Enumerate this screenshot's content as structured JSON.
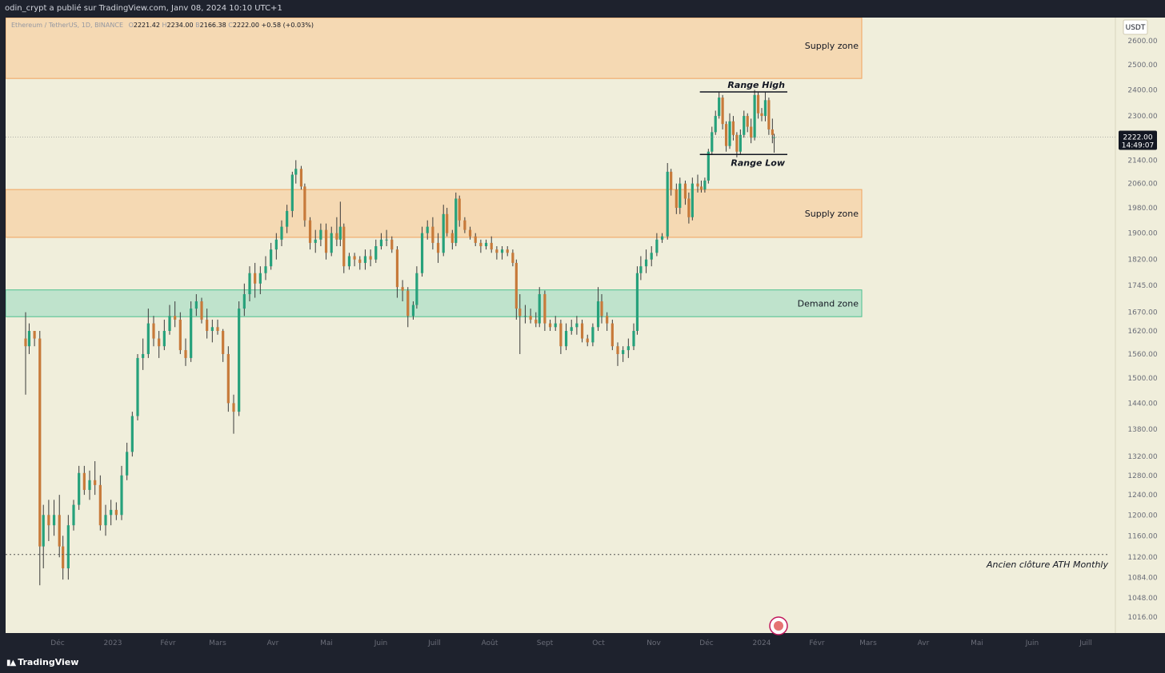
{
  "header": {
    "publisher_text": "odin_crypt a publié sur TradingView.com, Janv 08, 2024 10:10 UTC+1"
  },
  "footer": {
    "brand": "TradingView",
    "logo_icon": "tradingview-logo-icon"
  },
  "symbol_bar": {
    "symbol": "Ethereum / TetherUS, 1D, BINANCE",
    "open_label": "O",
    "open": "2221.42",
    "high_label": "H",
    "high": "2234.00",
    "low_label": "B",
    "low": "2166.38",
    "close_label": "C",
    "close": "2222.00",
    "change": "+0.58 (+0.03%)"
  },
  "chart_data": {
    "type": "candlestick",
    "title": "Ethereum / TetherUS, 1D, BINANCE",
    "currency_label": "USDT",
    "y_scale": "log",
    "ylim": [
      1000,
      2680
    ],
    "y_ticks": [
      "2600.00",
      "2500.00",
      "2400.00",
      "2300.00",
      "2140.00",
      "2060.00",
      "1980.00",
      "1900.00",
      "1820.00",
      "1745.00",
      "1670.00",
      "1620.00",
      "1560.00",
      "1500.00",
      "1440.00",
      "1380.00",
      "1320.00",
      "1280.00",
      "1240.00",
      "1200.00",
      "1160.00",
      "1120.00",
      "1084.00",
      "1048.00",
      "1016.00"
    ],
    "x_ticks": [
      "Déc",
      "2023",
      "Févr",
      "Mars",
      "Avr",
      "Mai",
      "Juin",
      "Juill",
      "Août",
      "Sept",
      "Oct",
      "Nov",
      "Déc",
      "2024",
      "Févr",
      "Mars",
      "Avr",
      "Mai",
      "Juin",
      "Juill"
    ],
    "last_price": {
      "value": "2222.00",
      "countdown": "14:49:07",
      "price": 2222
    },
    "colors": {
      "background": "#f0eedb",
      "up": "#26a17b",
      "down": "#c77a3a",
      "wick": "#3a3a3a",
      "supply_fill": "#f5d9b3",
      "supply_border": "#f0a35e",
      "demand_fill": "#bfe3cc",
      "demand_border": "#4cc08f"
    },
    "zones": [
      {
        "type": "supply",
        "label": "Supply zone",
        "low": 2445,
        "high": 2700
      },
      {
        "type": "supply",
        "label": "Supply zone",
        "low": 1887,
        "high": 2040
      },
      {
        "type": "demand",
        "label": "Demand zone",
        "low": 1658,
        "high": 1732
      }
    ],
    "levels": [
      {
        "label": "Range High",
        "price": 2392,
        "start": "2023-11-29",
        "end": "2024-01-10"
      },
      {
        "label": "Range Low",
        "price": 2160,
        "start": "2023-11-29",
        "end": "2024-01-10"
      },
      {
        "label": "Ancien clôture ATH Monthly",
        "price": 1125,
        "style": "dotted"
      }
    ],
    "candles": [
      [
        "2022-11-13",
        1600,
        1670,
        1460,
        1580
      ],
      [
        "2022-11-15",
        1580,
        1640,
        1560,
        1620
      ],
      [
        "2022-11-18",
        1620,
        1610,
        1580,
        1600
      ],
      [
        "2022-11-21",
        1600,
        1620,
        1070,
        1140
      ],
      [
        "2022-11-23",
        1140,
        1220,
        1100,
        1200
      ],
      [
        "2022-11-26",
        1200,
        1230,
        1150,
        1180
      ],
      [
        "2022-11-29",
        1180,
        1230,
        1160,
        1200
      ],
      [
        "2022-12-02",
        1200,
        1240,
        1120,
        1140
      ],
      [
        "2022-12-04",
        1140,
        1160,
        1080,
        1100
      ],
      [
        "2022-12-07",
        1100,
        1200,
        1080,
        1180
      ],
      [
        "2022-12-10",
        1180,
        1230,
        1170,
        1220
      ],
      [
        "2022-12-13",
        1220,
        1300,
        1210,
        1285
      ],
      [
        "2022-12-16",
        1285,
        1300,
        1240,
        1250
      ],
      [
        "2022-12-19",
        1250,
        1290,
        1230,
        1270
      ],
      [
        "2022-12-22",
        1270,
        1310,
        1240,
        1260
      ],
      [
        "2022-12-25",
        1260,
        1280,
        1170,
        1180
      ],
      [
        "2022-12-28",
        1180,
        1220,
        1160,
        1200
      ],
      [
        "2022-12-31",
        1200,
        1230,
        1180,
        1210
      ],
      [
        "2023-01-03",
        1210,
        1225,
        1190,
        1200
      ],
      [
        "2023-01-06",
        1200,
        1300,
        1190,
        1280
      ],
      [
        "2023-01-09",
        1280,
        1350,
        1270,
        1330
      ],
      [
        "2023-01-12",
        1330,
        1420,
        1320,
        1410
      ],
      [
        "2023-01-15",
        1410,
        1560,
        1400,
        1550
      ],
      [
        "2023-01-18",
        1550,
        1600,
        1520,
        1560
      ],
      [
        "2023-01-21",
        1560,
        1680,
        1550,
        1640
      ],
      [
        "2023-01-24",
        1640,
        1660,
        1580,
        1600
      ],
      [
        "2023-01-27",
        1600,
        1620,
        1550,
        1580
      ],
      [
        "2023-01-30",
        1580,
        1650,
        1570,
        1620
      ],
      [
        "2023-02-02",
        1620,
        1690,
        1610,
        1660
      ],
      [
        "2023-02-05",
        1660,
        1700,
        1630,
        1650
      ],
      [
        "2023-02-08",
        1650,
        1670,
        1560,
        1570
      ],
      [
        "2023-02-11",
        1570,
        1600,
        1530,
        1550
      ],
      [
        "2023-02-14",
        1550,
        1700,
        1540,
        1680
      ],
      [
        "2023-02-17",
        1680,
        1720,
        1660,
        1700
      ],
      [
        "2023-02-20",
        1700,
        1710,
        1640,
        1650
      ],
      [
        "2023-02-23",
        1650,
        1680,
        1600,
        1620
      ],
      [
        "2023-02-26",
        1620,
        1650,
        1590,
        1630
      ],
      [
        "2023-03-01",
        1630,
        1650,
        1610,
        1620
      ],
      [
        "2023-03-04",
        1620,
        1625,
        1540,
        1560
      ],
      [
        "2023-03-07",
        1560,
        1580,
        1420,
        1440
      ],
      [
        "2023-03-10",
        1440,
        1460,
        1370,
        1420
      ],
      [
        "2023-03-13",
        1420,
        1700,
        1410,
        1680
      ],
      [
        "2023-03-16",
        1680,
        1750,
        1660,
        1720
      ],
      [
        "2023-03-19",
        1720,
        1800,
        1700,
        1780
      ],
      [
        "2023-03-22",
        1780,
        1810,
        1710,
        1750
      ],
      [
        "2023-03-25",
        1750,
        1800,
        1720,
        1780
      ],
      [
        "2023-03-28",
        1780,
        1830,
        1760,
        1800
      ],
      [
        "2023-03-31",
        1800,
        1870,
        1790,
        1850
      ],
      [
        "2023-04-03",
        1850,
        1900,
        1820,
        1880
      ],
      [
        "2023-04-06",
        1880,
        1940,
        1860,
        1920
      ],
      [
        "2023-04-09",
        1920,
        1990,
        1900,
        1970
      ],
      [
        "2023-04-12",
        1970,
        2100,
        1950,
        2090
      ],
      [
        "2023-04-14",
        2090,
        2140,
        2060,
        2110
      ],
      [
        "2023-04-17",
        2110,
        2120,
        2040,
        2050
      ],
      [
        "2023-04-19",
        2050,
        2060,
        1920,
        1940
      ],
      [
        "2023-04-22",
        1940,
        1950,
        1850,
        1870
      ],
      [
        "2023-04-25",
        1870,
        1910,
        1840,
        1880
      ],
      [
        "2023-04-28",
        1880,
        1930,
        1860,
        1910
      ],
      [
        "2023-05-01",
        1910,
        1930,
        1820,
        1840
      ],
      [
        "2023-05-04",
        1840,
        1920,
        1830,
        1900
      ],
      [
        "2023-05-07",
        1900,
        1950,
        1860,
        1880
      ],
      [
        "2023-05-09",
        1880,
        2000,
        1860,
        1920
      ],
      [
        "2023-05-11",
        1920,
        1930,
        1780,
        1800
      ],
      [
        "2023-05-14",
        1800,
        1840,
        1790,
        1830
      ],
      [
        "2023-05-17",
        1830,
        1840,
        1800,
        1820
      ],
      [
        "2023-05-20",
        1820,
        1830,
        1790,
        1810
      ],
      [
        "2023-05-23",
        1810,
        1850,
        1790,
        1830
      ],
      [
        "2023-05-26",
        1830,
        1850,
        1800,
        1820
      ],
      [
        "2023-05-29",
        1820,
        1880,
        1810,
        1860
      ],
      [
        "2023-06-01",
        1860,
        1900,
        1850,
        1880
      ],
      [
        "2023-06-04",
        1880,
        1910,
        1860,
        1880
      ],
      [
        "2023-06-07",
        1880,
        1890,
        1840,
        1850
      ],
      [
        "2023-06-10",
        1850,
        1860,
        1710,
        1740
      ],
      [
        "2023-06-13",
        1740,
        1760,
        1700,
        1730
      ],
      [
        "2023-06-16",
        1730,
        1740,
        1630,
        1660
      ],
      [
        "2023-06-19",
        1660,
        1700,
        1650,
        1690
      ],
      [
        "2023-06-21",
        1690,
        1800,
        1680,
        1780
      ],
      [
        "2023-06-24",
        1780,
        1920,
        1770,
        1900
      ],
      [
        "2023-06-27",
        1900,
        1940,
        1880,
        1920
      ],
      [
        "2023-06-30",
        1920,
        1950,
        1850,
        1870
      ],
      [
        "2023-07-03",
        1870,
        1900,
        1810,
        1840
      ],
      [
        "2023-07-06",
        1840,
        1990,
        1830,
        1960
      ],
      [
        "2023-07-08",
        1960,
        1980,
        1890,
        1900
      ],
      [
        "2023-07-11",
        1900,
        1910,
        1850,
        1870
      ],
      [
        "2023-07-13",
        1870,
        2030,
        1860,
        2010
      ],
      [
        "2023-07-15",
        2010,
        2020,
        1920,
        1940
      ],
      [
        "2023-07-18",
        1940,
        1950,
        1900,
        1910
      ],
      [
        "2023-07-21",
        1910,
        1920,
        1880,
        1890
      ],
      [
        "2023-07-24",
        1890,
        1900,
        1860,
        1870
      ],
      [
        "2023-07-27",
        1870,
        1880,
        1840,
        1860
      ],
      [
        "2023-07-30",
        1860,
        1880,
        1850,
        1870
      ],
      [
        "2023-08-02",
        1870,
        1890,
        1840,
        1850
      ],
      [
        "2023-08-05",
        1850,
        1860,
        1820,
        1840
      ],
      [
        "2023-08-08",
        1840,
        1860,
        1820,
        1850
      ],
      [
        "2023-08-11",
        1850,
        1860,
        1830,
        1840
      ],
      [
        "2023-08-14",
        1840,
        1850,
        1800,
        1810
      ],
      [
        "2023-08-16",
        1810,
        1820,
        1650,
        1680
      ],
      [
        "2023-08-18",
        1680,
        1720,
        1560,
        1660
      ],
      [
        "2023-08-21",
        1660,
        1690,
        1640,
        1660
      ],
      [
        "2023-08-24",
        1660,
        1680,
        1640,
        1650
      ],
      [
        "2023-08-27",
        1650,
        1670,
        1630,
        1640
      ],
      [
        "2023-08-29",
        1640,
        1740,
        1630,
        1720
      ],
      [
        "2023-09-01",
        1720,
        1730,
        1620,
        1640
      ],
      [
        "2023-09-04",
        1640,
        1650,
        1620,
        1630
      ],
      [
        "2023-09-07",
        1630,
        1660,
        1620,
        1640
      ],
      [
        "2023-09-10",
        1640,
        1650,
        1560,
        1580
      ],
      [
        "2023-09-13",
        1580,
        1640,
        1570,
        1620
      ],
      [
        "2023-09-16",
        1620,
        1650,
        1610,
        1630
      ],
      [
        "2023-09-19",
        1630,
        1660,
        1610,
        1640
      ],
      [
        "2023-09-22",
        1640,
        1650,
        1590,
        1600
      ],
      [
        "2023-09-25",
        1600,
        1610,
        1580,
        1590
      ],
      [
        "2023-09-28",
        1590,
        1640,
        1580,
        1630
      ],
      [
        "2023-10-01",
        1630,
        1740,
        1620,
        1700
      ],
      [
        "2023-10-03",
        1700,
        1720,
        1640,
        1660
      ],
      [
        "2023-10-06",
        1660,
        1670,
        1620,
        1640
      ],
      [
        "2023-10-09",
        1640,
        1650,
        1570,
        1580
      ],
      [
        "2023-10-12",
        1580,
        1590,
        1530,
        1560
      ],
      [
        "2023-10-15",
        1560,
        1580,
        1540,
        1570
      ],
      [
        "2023-10-18",
        1570,
        1600,
        1550,
        1580
      ],
      [
        "2023-10-21",
        1580,
        1640,
        1570,
        1620
      ],
      [
        "2023-10-23",
        1620,
        1800,
        1610,
        1780
      ],
      [
        "2023-10-25",
        1780,
        1830,
        1760,
        1800
      ],
      [
        "2023-10-28",
        1800,
        1850,
        1780,
        1820
      ],
      [
        "2023-10-31",
        1820,
        1860,
        1800,
        1840
      ],
      [
        "2023-11-03",
        1840,
        1900,
        1830,
        1880
      ],
      [
        "2023-11-06",
        1880,
        1900,
        1870,
        1890
      ],
      [
        "2023-11-09",
        1890,
        2130,
        1880,
        2100
      ],
      [
        "2023-11-11",
        2100,
        2110,
        2020,
        2040
      ],
      [
        "2023-11-14",
        2040,
        2060,
        1960,
        1980
      ],
      [
        "2023-11-16",
        1980,
        2080,
        1960,
        2060
      ],
      [
        "2023-11-19",
        2060,
        2070,
        1990,
        2010
      ],
      [
        "2023-11-21",
        2010,
        2030,
        1930,
        1950
      ],
      [
        "2023-11-23",
        1950,
        2080,
        1940,
        2060
      ],
      [
        "2023-11-26",
        2060,
        2090,
        2030,
        2050
      ],
      [
        "2023-11-28",
        2050,
        2070,
        2030,
        2040
      ],
      [
        "2023-11-30",
        2040,
        2080,
        2030,
        2070
      ],
      [
        "2023-12-02",
        2070,
        2180,
        2060,
        2170
      ],
      [
        "2023-12-04",
        2170,
        2260,
        2160,
        2240
      ],
      [
        "2023-12-06",
        2240,
        2320,
        2230,
        2300
      ],
      [
        "2023-12-08",
        2300,
        2390,
        2290,
        2370
      ],
      [
        "2023-12-10",
        2370,
        2380,
        2250,
        2270
      ],
      [
        "2023-12-12",
        2270,
        2280,
        2170,
        2190
      ],
      [
        "2023-12-14",
        2190,
        2310,
        2180,
        2280
      ],
      [
        "2023-12-16",
        2280,
        2300,
        2210,
        2230
      ],
      [
        "2023-12-18",
        2230,
        2240,
        2150,
        2170
      ],
      [
        "2023-12-20",
        2170,
        2250,
        2160,
        2230
      ],
      [
        "2023-12-22",
        2230,
        2320,
        2220,
        2300
      ],
      [
        "2023-12-24",
        2300,
        2310,
        2240,
        2260
      ],
      [
        "2023-12-26",
        2260,
        2290,
        2200,
        2220
      ],
      [
        "2023-12-28",
        2220,
        2400,
        2210,
        2380
      ],
      [
        "2023-12-30",
        2380,
        2390,
        2290,
        2310
      ],
      [
        "2024-01-01",
        2310,
        2330,
        2280,
        2300
      ],
      [
        "2024-01-03",
        2300,
        2390,
        2280,
        2360
      ],
      [
        "2024-01-05",
        2360,
        2370,
        2230,
        2250
      ],
      [
        "2024-01-07",
        2250,
        2290,
        2200,
        2230
      ],
      [
        "2024-01-08",
        2221.42,
        2234,
        2166.38,
        2222
      ]
    ]
  }
}
